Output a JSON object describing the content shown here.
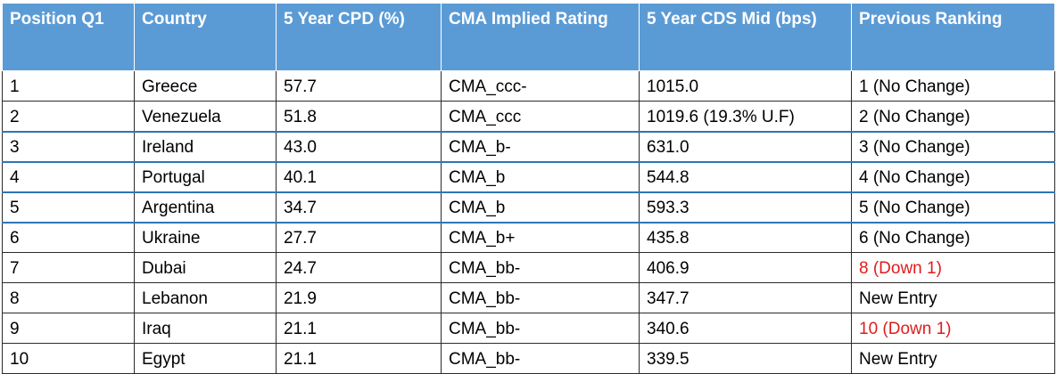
{
  "headers": [
    "Position Q1",
    "Country",
    "5 Year CPD (%)",
    "CMA Implied Rating",
    "5 Year CDS Mid (bps)",
    "Previous Ranking"
  ],
  "rows": [
    {
      "position": "1",
      "country": "Greece",
      "cpd": "57.7",
      "rating": "CMA_ccc-",
      "cds": "1015.0",
      "previous": "1 (No Change)",
      "previous_status": "normal"
    },
    {
      "position": "2",
      "country": "Venezuela",
      "cpd": "51.8",
      "rating": "CMA_ccc",
      "cds": "1019.6 (19.3% U.F)",
      "previous": "2 (No Change)",
      "previous_status": "normal"
    },
    {
      "position": "3",
      "country": "Ireland",
      "cpd": "43.0",
      "rating": "CMA_b-",
      "cds": "631.0",
      "previous": "3 (No Change)",
      "previous_status": "normal"
    },
    {
      "position": "4",
      "country": "Portugal",
      "cpd": "40.1",
      "rating": "CMA_b",
      "cds": "544.8",
      "previous": "4 (No Change)",
      "previous_status": "normal"
    },
    {
      "position": "5",
      "country": "Argentina",
      "cpd": "34.7",
      "rating": "CMA_b",
      "cds": "593.3",
      "previous": "5 (No Change)",
      "previous_status": "normal"
    },
    {
      "position": "6",
      "country": "Ukraine",
      "cpd": "27.7",
      "rating": "CMA_b+",
      "cds": "435.8",
      "previous": "6 (No Change)",
      "previous_status": "normal"
    },
    {
      "position": "7",
      "country": "Dubai",
      "cpd": "24.7",
      "rating": "CMA_bb-",
      "cds": "406.9",
      "previous": "8 (Down 1)",
      "previous_status": "down"
    },
    {
      "position": "8",
      "country": "Lebanon",
      "cpd": "21.9",
      "rating": "CMA_bb-",
      "cds": "347.7",
      "previous": "New Entry",
      "previous_status": "normal"
    },
    {
      "position": "9",
      "country": "Iraq",
      "cpd": "21.1",
      "rating": "CMA_bb-",
      "cds": "340.6",
      "previous": "10 (Down 1)",
      "previous_status": "down"
    },
    {
      "position": "10",
      "country": "Egypt",
      "cpd": "21.1",
      "rating": "CMA_bb-",
      "cds": "339.5",
      "previous": "New Entry",
      "previous_status": "normal"
    }
  ],
  "colors": {
    "header_bg": "#5b9bd5",
    "header_text": "#ffffff",
    "down_text": "#e01c1c",
    "separator": "#2e75b6"
  }
}
